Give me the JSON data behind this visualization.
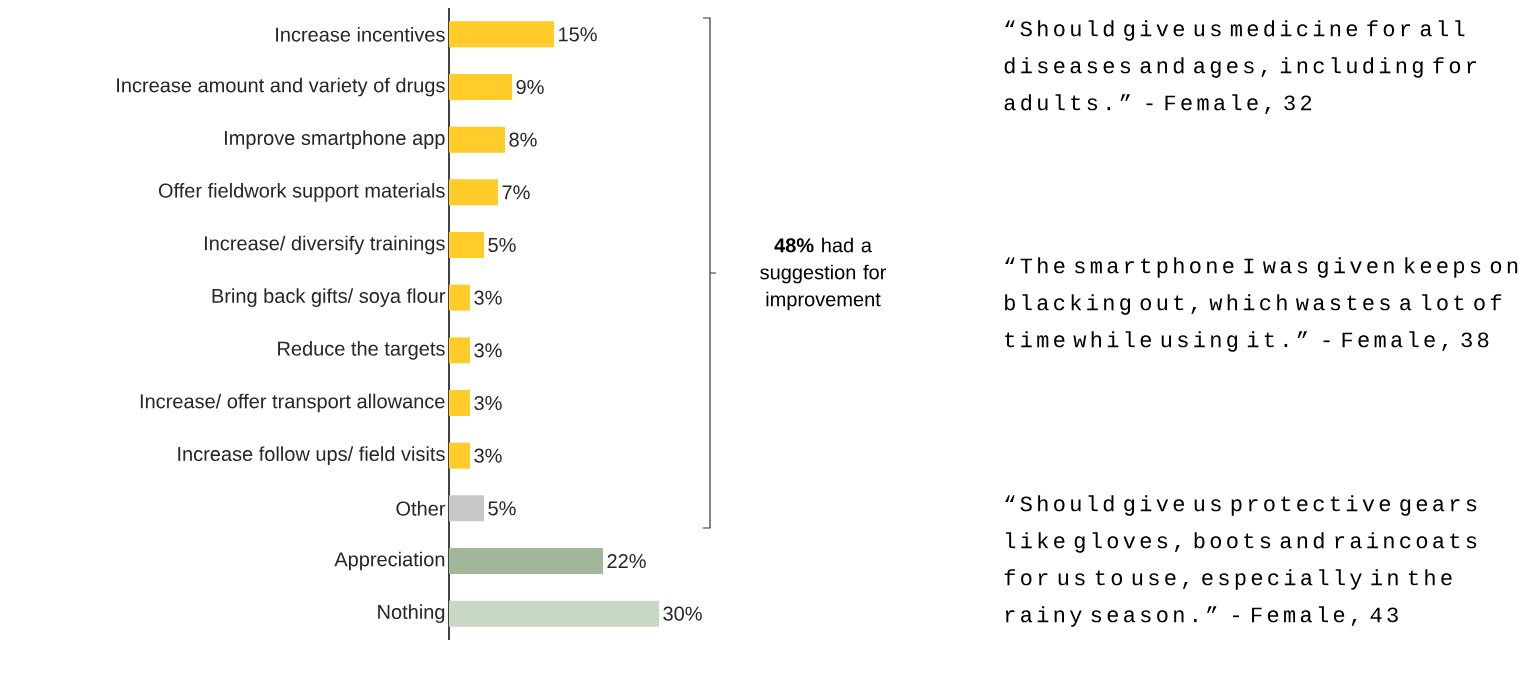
{
  "chart_data": {
    "type": "bar",
    "orientation": "horizontal",
    "categories": [
      "Increase incentives",
      "Increase amount and variety of drugs",
      "Improve smartphone app",
      "Offer fieldwork support materials",
      "Increase/ diversify trainings",
      "Bring back gifts/ soya flour",
      "Reduce the targets",
      "Increase/ offer transport allowance",
      "Increase follow ups/ field visits",
      "Other",
      "Appreciation",
      "Nothing"
    ],
    "values": [
      15,
      9,
      8,
      7,
      5,
      3,
      3,
      3,
      3,
      5,
      22,
      30
    ],
    "value_labels": [
      "15%",
      "9%",
      "8%",
      "7%",
      "5%",
      "3%",
      "3%",
      "3%",
      "3%",
      "5%",
      "22%",
      "30%"
    ],
    "colors": [
      "#ffcc29",
      "#ffcc29",
      "#ffcc29",
      "#ffcc29",
      "#ffcc29",
      "#ffcc29",
      "#ffcc29",
      "#ffcc29",
      "#ffcc29",
      "#c8c8c8",
      "#a3b89b",
      "#c9d8c5"
    ],
    "annotations": [
      "**48%** had a suggestion for improvement",
      "“Should give us medicine for all diseases and ages, including for adults.” - Female, 32",
      "“The smartphone I was given keeps on blacking out, which wastes a lot of time while using it.” - Female, 38",
      "“Should give us protective gears like gloves, boots and raincoats for us to use, especially in the rainy season.” - Female, 43"
    ]
  }
}
